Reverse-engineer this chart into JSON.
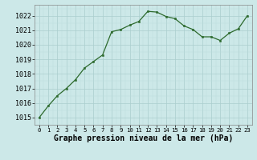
{
  "x": [
    0,
    1,
    2,
    3,
    4,
    5,
    6,
    7,
    8,
    9,
    10,
    11,
    12,
    13,
    14,
    15,
    16,
    17,
    18,
    19,
    20,
    21,
    22,
    23
  ],
  "y": [
    1015.0,
    1015.8,
    1016.5,
    1017.0,
    1017.6,
    1018.4,
    1018.85,
    1019.3,
    1020.9,
    1021.05,
    1021.35,
    1021.6,
    1022.3,
    1022.25,
    1021.95,
    1021.8,
    1021.3,
    1021.05,
    1020.55,
    1020.55,
    1020.3,
    1020.8,
    1021.1,
    1022.0
  ],
  "line_color": "#2d6a2d",
  "marker_color": "#2d6a2d",
  "bg_color": "#cce8e8",
  "grid_color_major": "#aacece",
  "grid_color_minor": "#bbdddd",
  "xlabel": "Graphe pression niveau de la mer (hPa)",
  "ylim": [
    1014.5,
    1022.75
  ],
  "yticks": [
    1015,
    1016,
    1017,
    1018,
    1019,
    1020,
    1021,
    1022
  ],
  "xticks": [
    0,
    1,
    2,
    3,
    4,
    5,
    6,
    7,
    8,
    9,
    10,
    11,
    12,
    13,
    14,
    15,
    16,
    17,
    18,
    19,
    20,
    21,
    22,
    23
  ],
  "xlabel_fontsize": 7.0,
  "tick_fontsize": 6.0,
  "xtick_fontsize": 5.2
}
